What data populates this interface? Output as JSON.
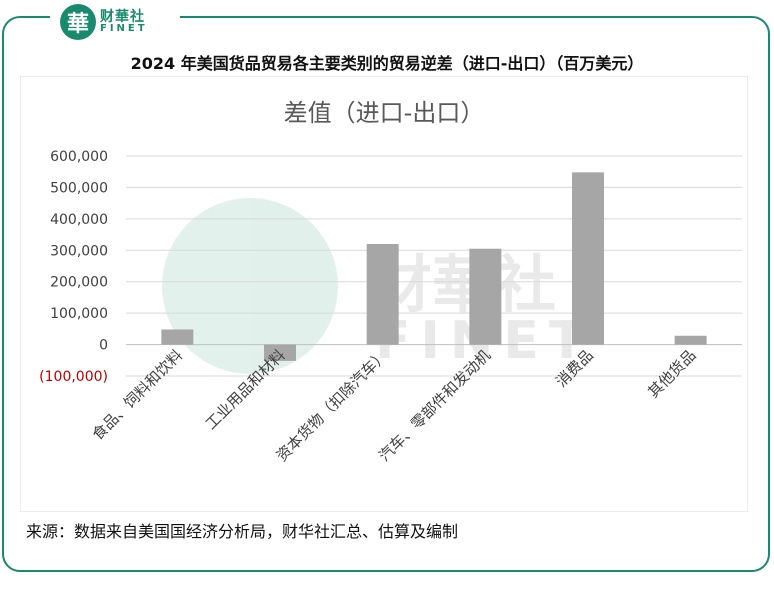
{
  "logo": {
    "cn": "财華社",
    "en": "FINET",
    "badge": "華"
  },
  "header": {
    "title": "2024 年美国货品贸易各主要类别的贸易逆差（进口-出口）（百万美元）"
  },
  "footer": {
    "source": "来源：数据来自美国国经济分析局，财华社汇总、估算及编制"
  },
  "watermark": {
    "cn": "财華社",
    "en": "FINET"
  },
  "colors": {
    "bar": "#a6a6a6",
    "accent": "#1a8a6e",
    "negative_tick": "#c00000"
  },
  "chart_data": {
    "type": "bar",
    "title": "差值（进口-出口）",
    "categories": [
      "食品、饲料和饮料",
      "工业用品和材料",
      "资本货物（扣除汽车）",
      "汽车、零部件和发动机",
      "消费品",
      "其他货品"
    ],
    "values": [
      48000,
      -52000,
      320000,
      305000,
      548000,
      28000
    ],
    "ylim": [
      -100000,
      600000
    ],
    "yticks": [
      600000,
      500000,
      400000,
      300000,
      200000,
      100000,
      0,
      -100000
    ],
    "ytick_labels": [
      "600,000",
      "500,000",
      "400,000",
      "300,000",
      "200,000",
      "100,000",
      "0",
      "(100,000)"
    ],
    "grid": true,
    "legend": "none"
  }
}
